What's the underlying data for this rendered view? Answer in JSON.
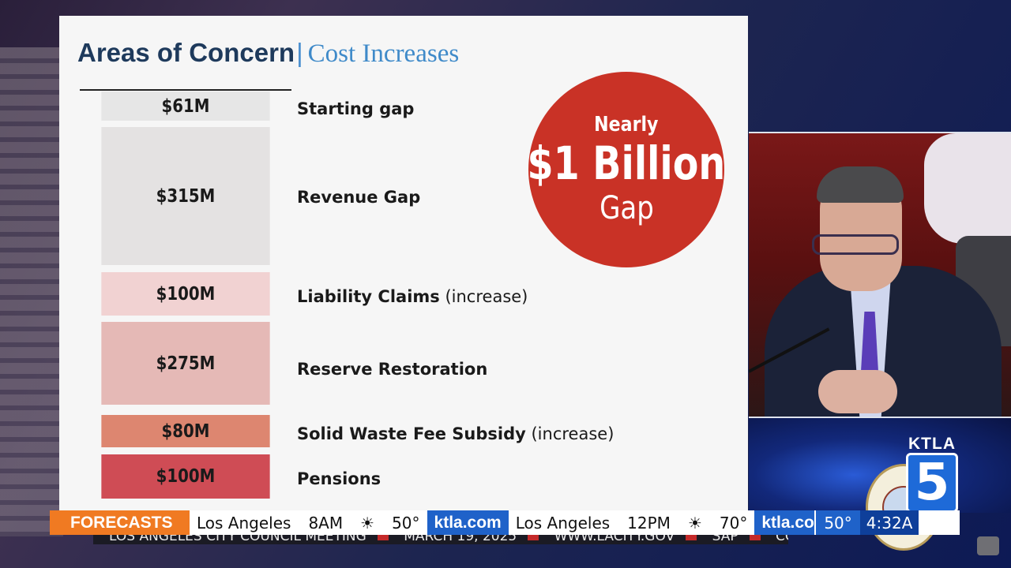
{
  "slide": {
    "title": "Areas of Concern",
    "separator": "|",
    "subtitle": "Cost Increases",
    "items": [
      {
        "value": "$61M",
        "label": "Starting gap",
        "note": "",
        "color": "#e6e6e6"
      },
      {
        "value": "$315M",
        "label": "Revenue Gap",
        "note": "",
        "color": "#e4e2e2"
      },
      {
        "value": "$100M",
        "label": "Liability Claims",
        "note": "(increase)",
        "color": "#f1d2d2"
      },
      {
        "value": "$275M",
        "label": "Reserve Restoration",
        "note": "",
        "color": "#e5b9b6"
      },
      {
        "value": "$80M",
        "label": "Solid Waste Fee Subsidy",
        "note": "(increase)",
        "color": "#dd8670"
      },
      {
        "value": "$100M",
        "label": "Pensions",
        "note": "",
        "color": "#cf4c55"
      }
    ],
    "callout": {
      "line1": "Nearly",
      "line2": "$1 Billion",
      "line3": "Gap",
      "color": "#c93226"
    }
  },
  "station": {
    "wordmark": "KTLA",
    "numeral": "5"
  },
  "ticker": {
    "tag": "FORECASTS",
    "segments": [
      {
        "city": "Los Angeles",
        "time": "8AM",
        "icon": "sun-icon",
        "temp": "50°"
      },
      {
        "city": "Los Angeles",
        "time": "12PM",
        "icon": "sun-icon",
        "temp": "70°"
      }
    ],
    "brand": "ktla.com",
    "brand_cut": "ktla.co",
    "current_temp": "50°",
    "clock": "4:32A"
  },
  "crawl": {
    "items": [
      "LOS ANGELES CITY COUNCIL MEETING",
      "MARCH 19, 2025",
      "WWW.LACITY.GOV",
      "SAP",
      "CC"
    ]
  }
}
